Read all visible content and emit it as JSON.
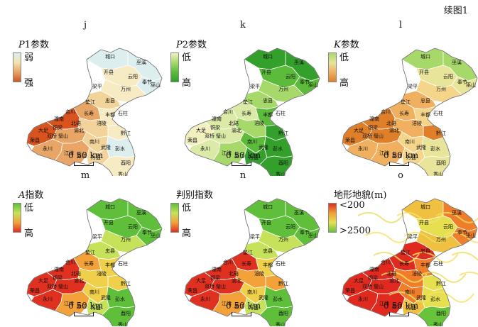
{
  "corner_label": "续图1",
  "panels": [
    {
      "letter": "j",
      "title_prefix": "P",
      "title_rest": "1参数",
      "low": "弱",
      "high": "强",
      "grad": [
        "#ddeeee",
        "#f1e3b0",
        "#e9a565",
        "#d1562a"
      ]
    },
    {
      "letter": "k",
      "title_prefix": "P",
      "title_rest": "2参数",
      "low": "低",
      "high": "高",
      "grad": [
        "#f3f0c0",
        "#a6d96a",
        "#5dbb3c",
        "#33a02c"
      ]
    },
    {
      "letter": "l",
      "title_prefix": "K",
      "title_rest": "参数",
      "low": "低",
      "high": "高",
      "grad": [
        "#a6d96a",
        "#e8e49a",
        "#f0b060",
        "#e07f2a"
      ]
    },
    {
      "letter": "m",
      "title_prefix": "A",
      "title_rest": "指数",
      "low": "低",
      "high": "高",
      "grad": [
        "#5fbf3a",
        "#c6e25a",
        "#f3a23a",
        "#e03020"
      ]
    },
    {
      "letter": "n",
      "title_prefix": "",
      "title_rest": "判别指数",
      "low": "低",
      "high": "高",
      "grad": [
        "#5fbf3a",
        "#c6e25a",
        "#f3a23a",
        "#e03020"
      ]
    },
    {
      "letter": "o",
      "title_prefix": "",
      "title_rest": "地形地貌(m)",
      "low": "<200",
      "high": ">2500",
      "grad": [
        "#e02a20",
        "#f0a030",
        "#e6e050",
        "#66c33a"
      ]
    }
  ],
  "scale": {
    "zero": "0",
    "dist": "50 km"
  },
  "cities": [
    {
      "name": "城口"
    },
    {
      "name": "巫溪"
    },
    {
      "name": "开县"
    },
    {
      "name": "云阳"
    },
    {
      "name": "奉节"
    },
    {
      "name": "巫山"
    },
    {
      "name": "梁平"
    },
    {
      "name": "万州"
    },
    {
      "name": "忠县"
    },
    {
      "name": "垫江"
    },
    {
      "name": "石柱"
    },
    {
      "name": "丰都"
    },
    {
      "name": "长寿"
    },
    {
      "name": "涪陵"
    },
    {
      "name": "合川"
    },
    {
      "name": "潼南"
    },
    {
      "name": "大足"
    },
    {
      "name": "双桥"
    },
    {
      "name": "铜梁"
    },
    {
      "name": "北碚"
    },
    {
      "name": "渝北"
    },
    {
      "name": "荣昌"
    },
    {
      "name": "永川"
    },
    {
      "name": "江津"
    },
    {
      "name": "璧山"
    },
    {
      "name": "南川"
    },
    {
      "name": "武隆"
    },
    {
      "name": "彭水"
    },
    {
      "name": "黔江"
    },
    {
      "name": "酉阳"
    },
    {
      "name": "秀山"
    },
    {
      "name": "綦江"
    },
    {
      "name": "万盛"
    }
  ],
  "colors": {
    "j": [
      "#d9531f",
      "#e9a565",
      "#f2d49a",
      "#f7ebc4",
      "#ddeeee"
    ],
    "k": [
      "#33a02c",
      "#5dbb3c",
      "#a6d96a",
      "#dbeaa6",
      "#f3f0c0"
    ],
    "l": [
      "#e07f2a",
      "#f0b060",
      "#f5d58a",
      "#e8e49a",
      "#a6d96a"
    ],
    "m": [
      "#e03020",
      "#f3a23a",
      "#f0d04a",
      "#c6e25a",
      "#5fbf3a"
    ],
    "n": [
      "#e03020",
      "#f3a23a",
      "#f0d04a",
      "#c6e25a",
      "#5fbf3a"
    ],
    "o": [
      "#e02a20",
      "#f07d2a",
      "#f0c040",
      "#e6e050",
      "#66c33a"
    ]
  }
}
